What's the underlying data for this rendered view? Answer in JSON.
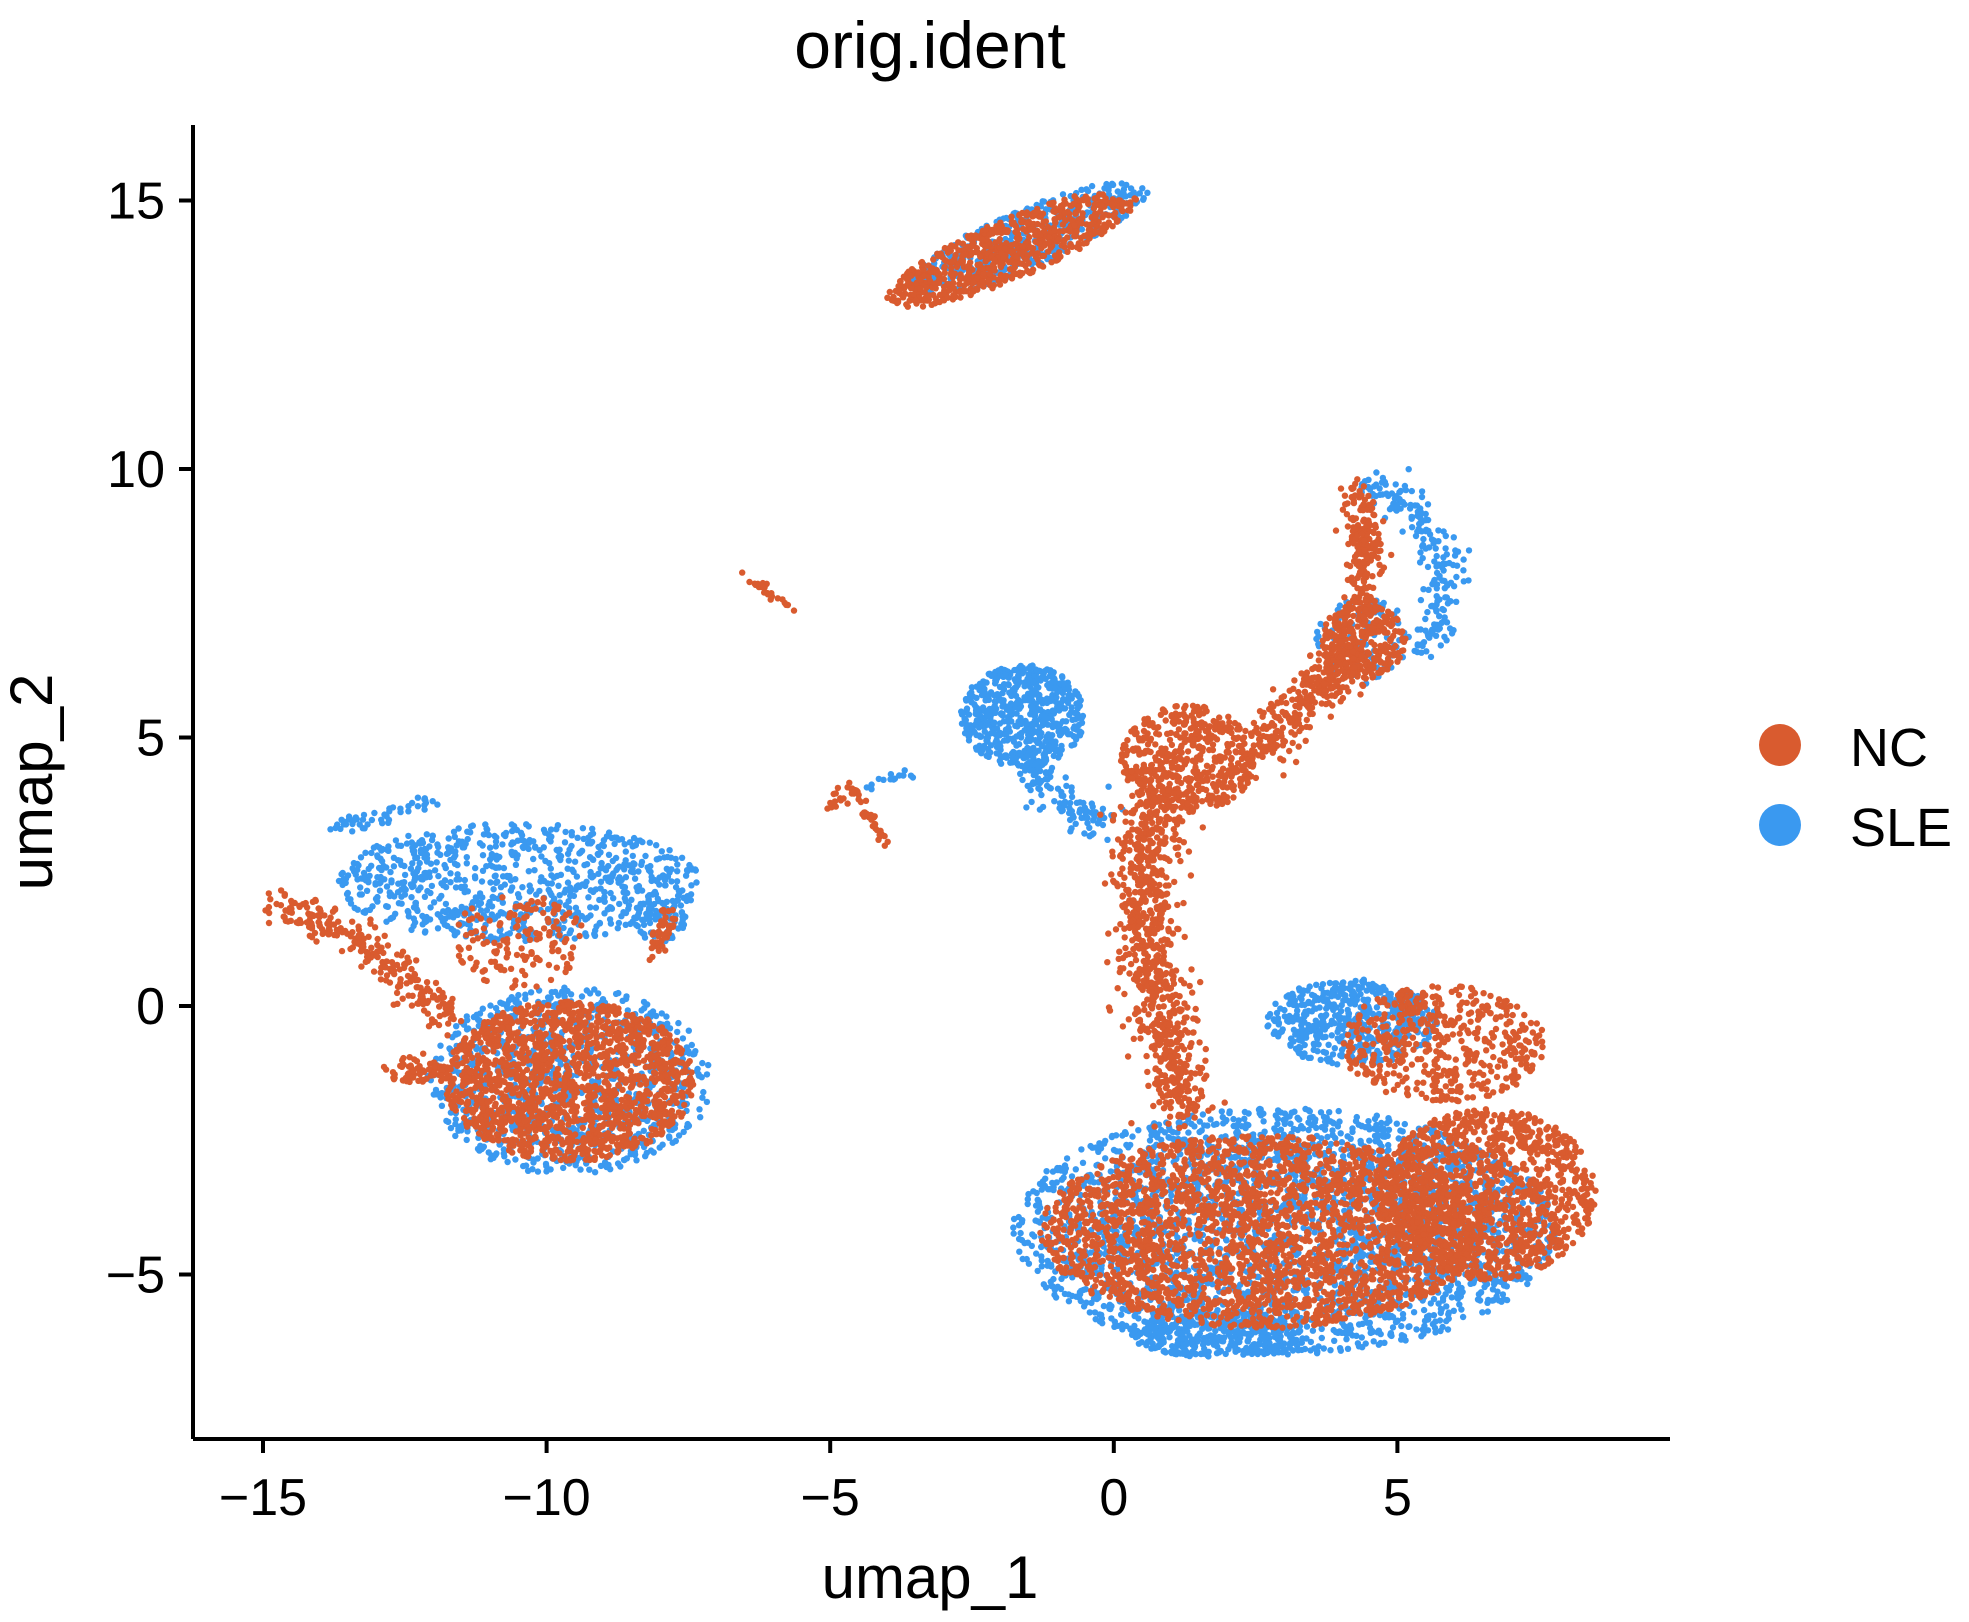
{
  "chart_data": {
    "type": "scatter",
    "title": "orig.ident",
    "xlabel": "umap_1",
    "ylabel": "umap_2",
    "xlim": [
      -16.2,
      9.8
    ],
    "ylim": [
      -7.5,
      16.4
    ],
    "x_ticks": [
      -15,
      -10,
      -5,
      0,
      5
    ],
    "x_tick_labels": [
      "−15",
      "−10",
      "−5",
      "0",
      "5"
    ],
    "y_ticks": [
      -5,
      0,
      5,
      10,
      15
    ],
    "y_tick_labels": [
      "−5",
      "0",
      "5",
      "10",
      "15"
    ],
    "grid": false,
    "legend_position": "right",
    "series": [
      {
        "name": "NC",
        "color": "#D95B2F",
        "clusters": [
          {
            "kind": "blob",
            "cx": -1.8,
            "cy": 14.1,
            "rx": 2.4,
            "ry": 0.55,
            "rot": 24,
            "n": 700
          },
          {
            "kind": "blob",
            "cx": -9.6,
            "cy": -1.4,
            "rx": 2.2,
            "ry": 1.5,
            "rot": 0,
            "n": 1600
          },
          {
            "kind": "path",
            "pts": [
              [
                -15,
                1.9
              ],
              [
                -13.5,
                1.4
              ],
              [
                -12.5,
                0.6
              ],
              [
                -11.7,
                -0.2
              ]
            ],
            "w": 0.35,
            "n": 250
          },
          {
            "kind": "path",
            "pts": [
              [
                -12.7,
                -1.2
              ],
              [
                -11.8,
                -1.2
              ]
            ],
            "w": 0.25,
            "n": 80
          },
          {
            "kind": "blob",
            "cx": -10.5,
            "cy": 1.2,
            "rx": 1.2,
            "ry": 0.9,
            "rot": 0,
            "n": 150
          },
          {
            "kind": "path",
            "pts": [
              [
                -7.8,
                1.8
              ],
              [
                -8.1,
                1.0
              ]
            ],
            "w": 0.15,
            "n": 40
          },
          {
            "kind": "blob",
            "cx": 1.3,
            "cy": 4.6,
            "rx": 1.2,
            "ry": 1.0,
            "rot": 0,
            "n": 500
          },
          {
            "kind": "path",
            "pts": [
              [
                0.7,
                4.0
              ],
              [
                0.5,
                2.0
              ],
              [
                0.8,
                0.0
              ],
              [
                1.2,
                -2.0
              ]
            ],
            "w": 0.55,
            "n": 800
          },
          {
            "kind": "path",
            "pts": [
              [
                2.5,
                4.8
              ],
              [
                3.5,
                5.9
              ],
              [
                4.3,
                6.5
              ]
            ],
            "w": 0.45,
            "n": 300
          },
          {
            "kind": "blob",
            "cx": 4.4,
            "cy": 6.8,
            "rx": 0.75,
            "ry": 0.7,
            "rot": 0,
            "n": 250
          },
          {
            "kind": "path",
            "pts": [
              [
                4.4,
                7.3
              ],
              [
                4.4,
                8.6
              ],
              [
                4.3,
                9.6
              ]
            ],
            "w": 0.3,
            "n": 200
          },
          {
            "kind": "blob",
            "cx": 5.8,
            "cy": -0.7,
            "rx": 1.8,
            "ry": 1.1,
            "rot": 0,
            "n": 500
          },
          {
            "kind": "blob",
            "cx": 2.6,
            "cy": -4.2,
            "rx": 3.9,
            "ry": 1.8,
            "rot": 0,
            "n": 2600
          },
          {
            "kind": "blob",
            "cx": 6.6,
            "cy": -3.5,
            "rx": 1.9,
            "ry": 1.6,
            "rot": 0,
            "n": 1200
          },
          {
            "kind": "path",
            "pts": [
              [
                -5.0,
                3.7
              ],
              [
                -4.6,
                4.1
              ],
              [
                -4.3,
                3.5
              ],
              [
                -4.0,
                3.0
              ]
            ],
            "w": 0.1,
            "n": 60
          },
          {
            "kind": "path",
            "pts": [
              [
                -6.6,
                8.0
              ],
              [
                -5.6,
                7.4
              ]
            ],
            "w": 0.08,
            "n": 25
          }
        ]
      },
      {
        "name": "SLE",
        "color": "#3A99F0",
        "clusters": [
          {
            "kind": "blob",
            "cx": -1.5,
            "cy": 14.3,
            "rx": 2.3,
            "ry": 0.55,
            "rot": 24,
            "n": 400
          },
          {
            "kind": "blob",
            "cx": -1.6,
            "cy": 5.4,
            "rx": 1.1,
            "ry": 0.95,
            "rot": 0,
            "n": 600
          },
          {
            "kind": "path",
            "pts": [
              [
                -1.6,
                4.6
              ],
              [
                -0.8,
                3.8
              ],
              [
                -0.2,
                3.4
              ]
            ],
            "w": 0.4,
            "n": 120
          },
          {
            "kind": "blob",
            "cx": -10.5,
            "cy": 2.3,
            "rx": 3.2,
            "ry": 1.1,
            "rot": 0,
            "n": 800
          },
          {
            "kind": "blob",
            "cx": -9.6,
            "cy": -1.4,
            "rx": 2.5,
            "ry": 1.75,
            "rot": 0,
            "n": 900
          },
          {
            "kind": "blob",
            "cx": -8.0,
            "cy": 1.6,
            "rx": 0.5,
            "ry": 0.4,
            "rot": 0,
            "n": 60
          },
          {
            "kind": "path",
            "pts": [
              [
                -13.8,
                3.3
              ],
              [
                -12.0,
                3.8
              ]
            ],
            "w": 0.15,
            "n": 50
          },
          {
            "kind": "path",
            "pts": [
              [
                4.5,
                9.7
              ],
              [
                5.3,
                9.2
              ],
              [
                5.9,
                8.0
              ],
              [
                5.5,
                6.6
              ]
            ],
            "w": 0.35,
            "n": 200
          },
          {
            "kind": "blob",
            "cx": 4.4,
            "cy": 6.8,
            "rx": 0.85,
            "ry": 0.8,
            "rot": 0,
            "n": 100
          },
          {
            "kind": "blob",
            "cx": 4.2,
            "cy": -0.3,
            "rx": 1.5,
            "ry": 0.8,
            "rot": 0,
            "n": 500
          },
          {
            "kind": "blob",
            "cx": 3.0,
            "cy": -4.2,
            "rx": 4.8,
            "ry": 2.3,
            "rot": 0,
            "n": 2600
          },
          {
            "kind": "blob",
            "cx": 1.8,
            "cy": -6.1,
            "rx": 1.5,
            "ry": 0.45,
            "rot": 0,
            "n": 300
          },
          {
            "kind": "path",
            "pts": [
              [
                -4.4,
                4.1
              ],
              [
                -3.5,
                4.4
              ]
            ],
            "w": 0.1,
            "n": 15
          }
        ]
      }
    ]
  }
}
